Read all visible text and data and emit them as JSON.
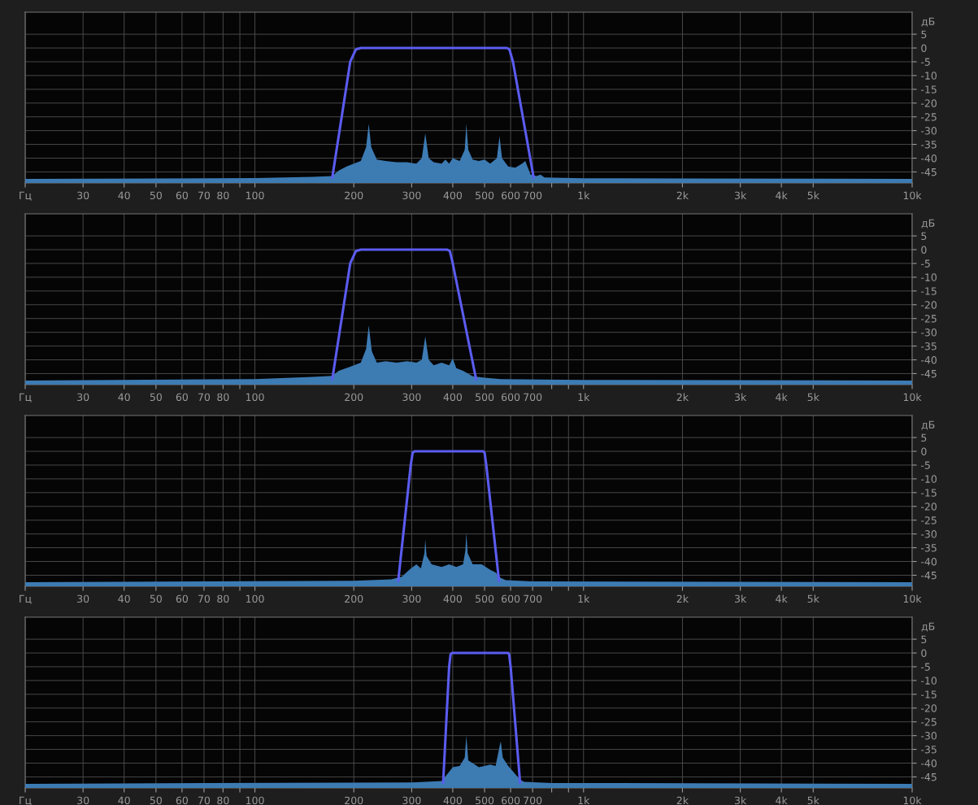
{
  "chart_data": [
    {
      "type": "area",
      "log": "x",
      "grid": true,
      "xlim": [
        20,
        10000
      ],
      "ylim": [
        -49,
        13
      ],
      "ylabel": "дБ",
      "xticks": [
        {
          "value": 20,
          "label": "Гц"
        },
        30,
        40,
        50,
        60,
        70,
        80,
        {
          "value": 90,
          "label": null
        },
        100,
        200,
        300,
        400,
        500,
        600,
        700,
        {
          "value": 800,
          "label": null
        },
        {
          "value": 900,
          "label": null
        },
        {
          "value": 1000,
          "label": "1k"
        },
        {
          "value": 2000,
          "label": "2k"
        },
        {
          "value": 3000,
          "label": "3k"
        },
        {
          "value": 4000,
          "label": "4k"
        },
        {
          "value": 5000,
          "label": "5k"
        },
        {
          "value": 10000,
          "label": "10k"
        }
      ],
      "yticks": [
        5,
        0,
        -5,
        -10,
        -15,
        -20,
        -25,
        -30,
        -35,
        -40,
        -45
      ],
      "series": [
        {
          "color": "#3d7bb3",
          "x": [
            20,
            50,
            100,
            150,
            172,
            180,
            190,
            200,
            210,
            218,
            222,
            226,
            235,
            250,
            270,
            290,
            310,
            322,
            330,
            338,
            350,
            370,
            380,
            390,
            400,
            420,
            435,
            440,
            446,
            460,
            480,
            500,
            520,
            545,
            555,
            565,
            590,
            620,
            650,
            665,
            690,
            720,
            740,
            760,
            1000,
            2000,
            10000
          ],
          "values": [
            -47.5,
            -47.4,
            -47.2,
            -46.8,
            -46.5,
            -44.5,
            -43,
            -42,
            -41,
            -36,
            -27.5,
            -36,
            -40.5,
            -41,
            -41.5,
            -41.5,
            -42,
            -40,
            -31,
            -40,
            -41.5,
            -42,
            -40.5,
            -42,
            -40,
            -41,
            -37,
            -27.5,
            -37,
            -40.5,
            -41,
            -40.5,
            -42,
            -40,
            -32,
            -40,
            -43,
            -43.5,
            -42,
            -41,
            -46,
            -46.5,
            -46,
            -47,
            -47.3,
            -47.4,
            -47.5
          ]
        },
        {
          "type": "line",
          "color": "#5b5cf0",
          "x": [
            172,
            195,
            203,
            210,
            585,
            595,
            610,
            705
          ],
          "values": [
            -47,
            -5,
            -0.5,
            0,
            0,
            -0.5,
            -5,
            -47
          ]
        }
      ]
    },
    {
      "type": "area",
      "log": "x",
      "grid": true,
      "xlim": [
        20,
        10000
      ],
      "ylim": [
        -49,
        13
      ],
      "ylabel": "дБ",
      "xticks": [
        {
          "value": 20,
          "label": "Гц"
        },
        30,
        40,
        50,
        60,
        70,
        80,
        {
          "value": 90,
          "label": null
        },
        100,
        200,
        300,
        400,
        500,
        600,
        700,
        {
          "value": 800,
          "label": null
        },
        {
          "value": 900,
          "label": null
        },
        {
          "value": 1000,
          "label": "1k"
        },
        {
          "value": 2000,
          "label": "2k"
        },
        {
          "value": 3000,
          "label": "3k"
        },
        {
          "value": 4000,
          "label": "4k"
        },
        {
          "value": 5000,
          "label": "5k"
        },
        {
          "value": 10000,
          "label": "10k"
        }
      ],
      "yticks": [
        5,
        0,
        -5,
        -10,
        -15,
        -20,
        -25,
        -30,
        -35,
        -40,
        -45
      ],
      "series": [
        {
          "color": "#3d7bb3",
          "x": [
            20,
            100,
            150,
            172,
            180,
            195,
            210,
            218,
            222,
            227,
            235,
            250,
            270,
            290,
            310,
            322,
            330,
            338,
            350,
            370,
            390,
            400,
            410,
            430,
            460,
            500,
            560,
            1000,
            10000
          ],
          "values": [
            -47.5,
            -47,
            -46.2,
            -45.8,
            -44,
            -42.5,
            -41,
            -36,
            -27.5,
            -37,
            -41,
            -40.5,
            -41,
            -40.5,
            -41,
            -40,
            -31.5,
            -40,
            -42,
            -41,
            -42,
            -39.5,
            -43,
            -44,
            -46,
            -46.5,
            -47,
            -47.3,
            -47.5
          ]
        },
        {
          "type": "line",
          "color": "#5b5cf0",
          "x": [
            172,
            195,
            203,
            210,
            385,
            392,
            400,
            471
          ],
          "values": [
            -47,
            -5,
            -0.5,
            0,
            0,
            -0.5,
            -5,
            -47
          ]
        }
      ]
    },
    {
      "type": "area",
      "log": "x",
      "grid": true,
      "xlim": [
        20,
        10000
      ],
      "ylim": [
        -49,
        13
      ],
      "ylabel": "дБ",
      "xticks": [
        {
          "value": 20,
          "label": "Гц"
        },
        30,
        40,
        50,
        60,
        70,
        80,
        {
          "value": 90,
          "label": null
        },
        100,
        200,
        300,
        400,
        500,
        600,
        700,
        {
          "value": 800,
          "label": null
        },
        {
          "value": 900,
          "label": null
        },
        {
          "value": 1000,
          "label": "1k"
        },
        {
          "value": 2000,
          "label": "2k"
        },
        {
          "value": 3000,
          "label": "3k"
        },
        {
          "value": 4000,
          "label": "4k"
        },
        {
          "value": 5000,
          "label": "5k"
        },
        {
          "value": 10000,
          "label": "10k"
        }
      ],
      "yticks": [
        5,
        0,
        -5,
        -10,
        -15,
        -20,
        -25,
        -30,
        -35,
        -40,
        -45
      ],
      "series": [
        {
          "color": "#3d7bb3",
          "x": [
            20,
            200,
            260,
            280,
            295,
            310,
            320,
            328,
            330,
            333,
            345,
            370,
            390,
            410,
            430,
            437,
            440,
            444,
            460,
            490,
            520,
            540,
            560,
            580,
            700,
            10000
          ],
          "values": [
            -47.5,
            -47,
            -46.5,
            -45.5,
            -43,
            -41,
            -42.5,
            -37,
            -32,
            -38,
            -41,
            -42,
            -41,
            -42,
            -41,
            -36,
            -29.5,
            -37,
            -41,
            -41,
            -43,
            -44,
            -46,
            -46.8,
            -47.2,
            -47.5
          ]
        },
        {
          "type": "line",
          "color": "#5b5cf0",
          "x": [
            273,
            298,
            302,
            306,
            495,
            500,
            506,
            553
          ],
          "values": [
            -47,
            -5,
            -0.5,
            0,
            0,
            -0.5,
            -5,
            -47
          ]
        }
      ]
    },
    {
      "type": "area",
      "log": "x",
      "grid": true,
      "xlim": [
        20,
        10000
      ],
      "ylim": [
        -49,
        13
      ],
      "ylabel": "дБ",
      "xticks": [
        {
          "value": 20,
          "label": "Гц"
        },
        30,
        40,
        50,
        60,
        70,
        80,
        {
          "value": 90,
          "label": null
        },
        100,
        200,
        300,
        400,
        500,
        600,
        700,
        {
          "value": 800,
          "label": null
        },
        {
          "value": 900,
          "label": null
        },
        {
          "value": 1000,
          "label": "1k"
        },
        {
          "value": 2000,
          "label": "2k"
        },
        {
          "value": 3000,
          "label": "3k"
        },
        {
          "value": 4000,
          "label": "4k"
        },
        {
          "value": 5000,
          "label": "5k"
        },
        {
          "value": 10000,
          "label": "10k"
        }
      ],
      "yticks": [
        5,
        0,
        -5,
        -10,
        -15,
        -20,
        -25,
        -30,
        -35,
        -40,
        -45
      ],
      "series": [
        {
          "color": "#3d7bb3",
          "x": [
            20,
            300,
            370,
            385,
            400,
            420,
            435,
            440,
            446,
            460,
            480,
            500,
            520,
            540,
            555,
            560,
            568,
            590,
            620,
            640,
            660,
            800,
            10000
          ],
          "values": [
            -47.5,
            -47,
            -46.5,
            -44,
            -41.5,
            -41,
            -38,
            -30,
            -39,
            -40,
            -41.5,
            -41,
            -40.5,
            -41,
            -34,
            -32,
            -38,
            -41,
            -44,
            -46,
            -46.8,
            -47.2,
            -47.5
          ]
        },
        {
          "type": "line",
          "color": "#5b5cf0",
          "x": [
            374,
            390,
            394,
            398,
            590,
            594,
            600,
            641
          ],
          "values": [
            -47,
            -5,
            -0.5,
            0,
            0,
            -0.5,
            -5,
            -47
          ]
        }
      ]
    }
  ]
}
